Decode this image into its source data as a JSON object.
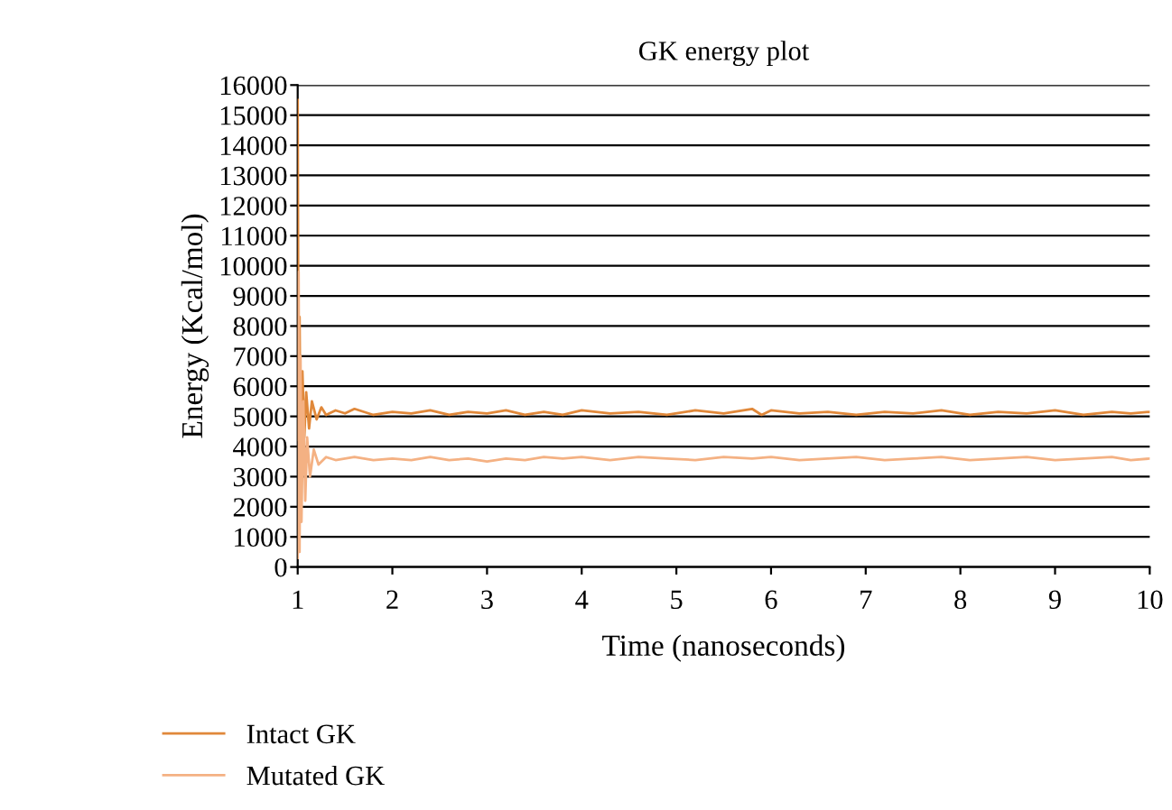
{
  "chart_data": {
    "type": "line",
    "title": "GK energy plot",
    "xlabel": "Time (nanoseconds)",
    "ylabel": "Energy (Kcal/mol)",
    "xlim": [
      1,
      10
    ],
    "xticks": [
      1,
      2,
      3,
      4,
      5,
      6,
      7,
      8,
      9,
      10
    ],
    "ylim": [
      0,
      16000
    ],
    "yticks": [
      0,
      1000,
      2000,
      3000,
      4000,
      5000,
      6000,
      7000,
      8000,
      9000,
      10000,
      11000,
      12000,
      13000,
      14000,
      15000,
      16000
    ],
    "grid": "y",
    "legend": "bottom",
    "marker": "none",
    "line_style": "solid",
    "series": [
      {
        "name": "Intact GK",
        "color": "#e0883a",
        "x": [
          1.0,
          1.01,
          1.02,
          1.03,
          1.05,
          1.07,
          1.09,
          1.12,
          1.15,
          1.2,
          1.25,
          1.3,
          1.4,
          1.5,
          1.6,
          1.8,
          2.0,
          2.2,
          2.4,
          2.6,
          2.8,
          3.0,
          3.2,
          3.4,
          3.6,
          3.8,
          4.0,
          4.3,
          4.6,
          4.9,
          5.2,
          5.5,
          5.8,
          5.9,
          6.0,
          6.3,
          6.6,
          6.9,
          7.2,
          7.5,
          7.8,
          8.1,
          8.4,
          8.7,
          9.0,
          9.3,
          9.6,
          9.8,
          10.0
        ],
        "values": [
          15500,
          4200,
          8300,
          4000,
          6500,
          4300,
          5800,
          4600,
          5500,
          4900,
          5300,
          5050,
          5200,
          5100,
          5250,
          5050,
          5150,
          5100,
          5200,
          5050,
          5150,
          5100,
          5200,
          5050,
          5150,
          5050,
          5200,
          5100,
          5150,
          5050,
          5200,
          5100,
          5250,
          5050,
          5200,
          5100,
          5150,
          5050,
          5150,
          5100,
          5200,
          5050,
          5150,
          5100,
          5200,
          5050,
          5150,
          5100,
          5150
        ]
      },
      {
        "name": "Mutated GK",
        "color": "#f4b183",
        "x": [
          1.0,
          1.01,
          1.02,
          1.03,
          1.04,
          1.06,
          1.08,
          1.1,
          1.13,
          1.17,
          1.22,
          1.3,
          1.4,
          1.5,
          1.6,
          1.8,
          2.0,
          2.2,
          2.4,
          2.6,
          2.8,
          3.0,
          3.2,
          3.4,
          3.6,
          3.8,
          4.0,
          4.3,
          4.6,
          4.9,
          5.2,
          5.5,
          5.8,
          6.0,
          6.3,
          6.6,
          6.9,
          7.2,
          7.5,
          7.8,
          8.1,
          8.4,
          8.7,
          9.0,
          9.3,
          9.6,
          9.8,
          10.0
        ],
        "values": [
          300,
          9800,
          500,
          7000,
          1500,
          5500,
          2200,
          4300,
          3000,
          3900,
          3400,
          3650,
          3550,
          3600,
          3650,
          3550,
          3600,
          3550,
          3650,
          3550,
          3600,
          3500,
          3600,
          3550,
          3650,
          3600,
          3650,
          3550,
          3650,
          3600,
          3550,
          3650,
          3600,
          3650,
          3550,
          3600,
          3650,
          3550,
          3600,
          3650,
          3550,
          3600,
          3650,
          3550,
          3600,
          3650,
          3550,
          3600
        ]
      }
    ]
  }
}
